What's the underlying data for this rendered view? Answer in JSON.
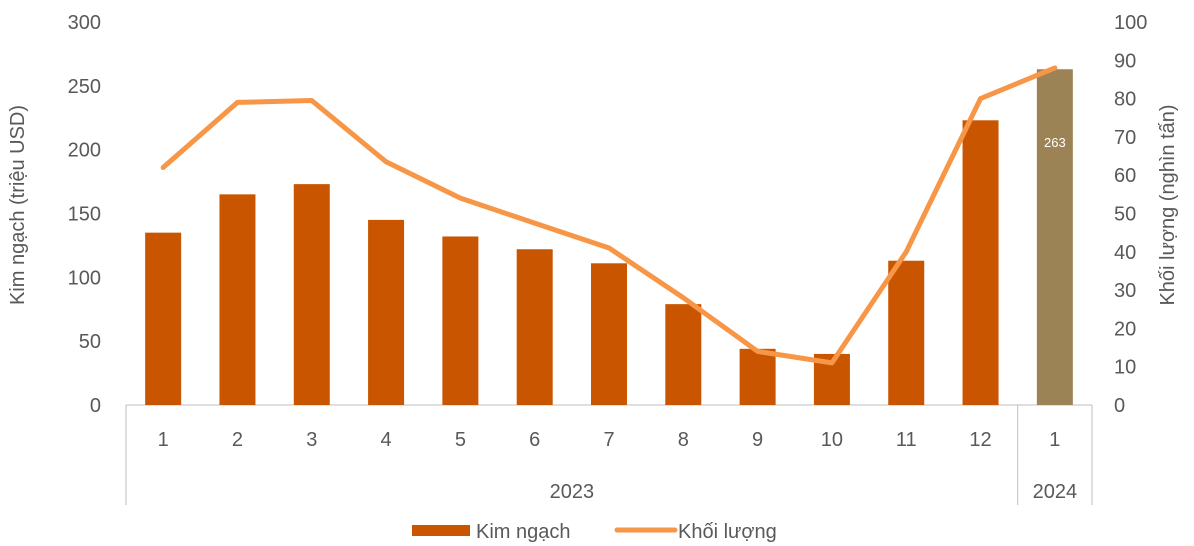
{
  "chart_data": {
    "type": "bar",
    "categories": [
      "1",
      "2",
      "3",
      "4",
      "5",
      "6",
      "7",
      "8",
      "9",
      "10",
      "11",
      "12",
      "1"
    ],
    "groups": [
      {
        "label": "2023",
        "count": 12
      },
      {
        "label": "2024",
        "count": 1
      }
    ],
    "series": [
      {
        "name": "Kim ngạch",
        "type": "bar",
        "axis": "left",
        "values": [
          135,
          165,
          173,
          145,
          132,
          122,
          111,
          79,
          44,
          40,
          113,
          223,
          263
        ],
        "color": "#c95500",
        "highlight_color": "#9c8355",
        "highlight_index": 12
      },
      {
        "name": "Khối lượng",
        "type": "line",
        "axis": "right",
        "values": [
          62,
          79,
          79.5,
          63.5,
          54,
          47.5,
          41,
          28,
          14,
          11,
          40,
          80,
          88
        ],
        "color": "#f79646"
      }
    ],
    "data_labels": [
      {
        "index": 12,
        "text": "263"
      }
    ],
    "ylabel": "Kim ngạch (triệu USD)",
    "y2label": "Khối lượng (nghìn tấn)",
    "ylim": [
      0,
      300
    ],
    "y2lim": [
      0,
      100
    ],
    "yticks": [
      "0",
      "50",
      "100",
      "150",
      "200",
      "250",
      "300"
    ],
    "y2ticks": [
      "0",
      "10",
      "20",
      "30",
      "40",
      "50",
      "60",
      "70",
      "80",
      "90",
      "100"
    ],
    "legend_position": "bottom",
    "grid": false
  }
}
